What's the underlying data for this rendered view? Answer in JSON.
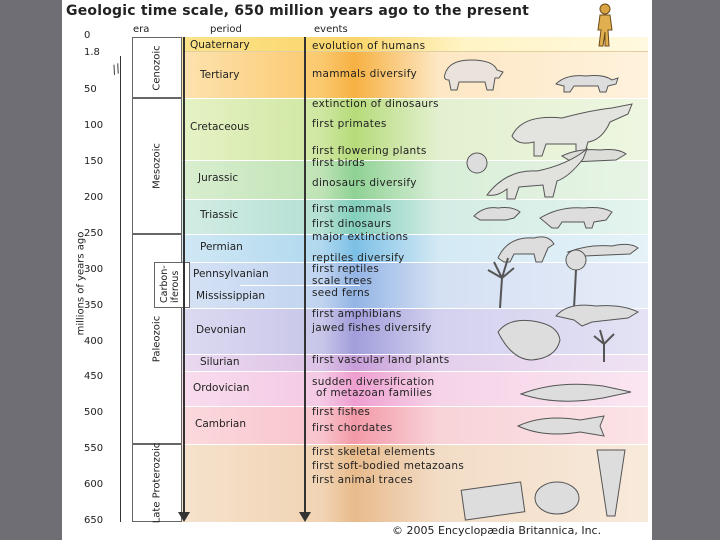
{
  "title": "Geologic time scale, 650 million years ago to the present",
  "headers": {
    "era": "era",
    "period": "period",
    "events": "events"
  },
  "y_axis_label": "millions of years ago",
  "ticks": [
    "0",
    "1.8",
    "50",
    "100",
    "150",
    "200",
    "250",
    "300",
    "350",
    "400",
    "450",
    "500",
    "550",
    "600",
    "650"
  ],
  "eras": [
    "Cenozoic",
    "Mesozoic",
    "Paleozoic",
    "Late Proterozoic"
  ],
  "carboniferous_label": [
    "Carbon-",
    "iferous"
  ],
  "periods": [
    "Quaternary",
    "Tertiary",
    "Cretaceous",
    "Jurassic",
    "Triassic",
    "Permian",
    "Pennsylvanian",
    "Mississippian",
    "Devonian",
    "Silurian",
    "Ordovician",
    "Cambrian"
  ],
  "events": [
    "evolution of humans",
    "mammals diversify",
    "extinction of dinosaurs",
    "first primates",
    "first flowering plants",
    "first birds",
    "dinosaurs diversify",
    "first mammals",
    "first dinosaurs",
    "major extinctions",
    "reptiles diversify",
    "first reptiles",
    "scale trees",
    "seed ferns",
    "first amphibians",
    "jawed fishes diversify",
    "first vascular land plants",
    "sudden diversification",
    "of metazoan families",
    "first fishes",
    "first chordates",
    "first skeletal elements",
    "first soft-bodied metazoans",
    "first animal traces"
  ],
  "copyright": "© 2005 Encyclopædia Britannica, Inc.",
  "colors": {
    "quaternary": "#fbe38a",
    "tertiary": "#fbc96e",
    "cretaceous": "#cfe7a1",
    "jurassic": "#bfe3b6",
    "triassic": "#b5e0d3",
    "permian": "#b1d8ee",
    "carboniferous": "#c0d4ef",
    "devonian": "#c8c6e8",
    "silurian": "#dcc3e6",
    "ordovician": "#f4c9e4",
    "cambrian": "#f8c4cc",
    "proterozoic": "#f1d4b4"
  }
}
